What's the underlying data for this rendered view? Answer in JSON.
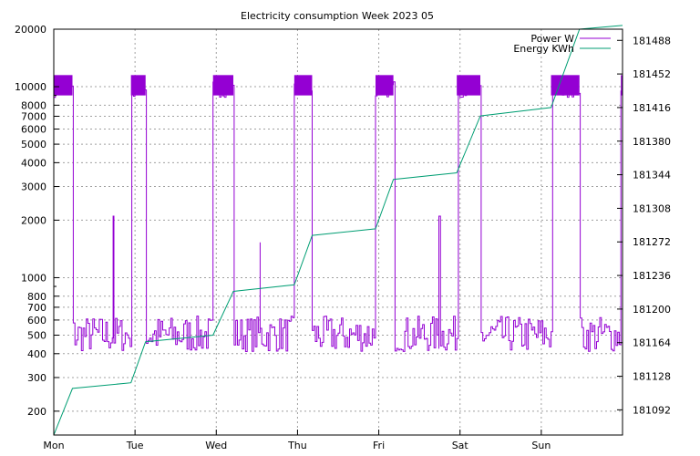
{
  "chart_data": {
    "type": "line",
    "title": "Electricity consumption Week 2023 05",
    "x_categories": [
      "Mon",
      "Tue",
      "Wed",
      "Thu",
      "Fri",
      "Sat",
      "Sun"
    ],
    "x_range_days": [
      0,
      7
    ],
    "y_left": {
      "scale": "log",
      "range": [
        150,
        20000
      ],
      "ticks": [
        200,
        300,
        400,
        500,
        600,
        700,
        800,
        1000,
        2000,
        3000,
        4000,
        5000,
        6000,
        7000,
        8000,
        10000,
        20000
      ]
    },
    "y_right": {
      "scale": "linear",
      "range": [
        181065,
        181500
      ],
      "ticks": [
        181092,
        181128,
        181164,
        181200,
        181236,
        181272,
        181308,
        181344,
        181380,
        181416,
        181452,
        181488
      ]
    },
    "grid": true,
    "legend_position": "top-right",
    "series": [
      {
        "name": "Power W",
        "axis": "left",
        "color": "#9400d3",
        "baseline_range": [
          410,
          630
        ],
        "high_block_level": 10000,
        "high_blocks": [
          [
            0.0,
            0.23
          ],
          [
            0.95,
            1.13
          ],
          [
            1.96,
            2.21
          ],
          [
            2.96,
            3.18
          ],
          [
            3.96,
            4.18
          ],
          [
            4.96,
            5.25
          ],
          [
            6.12,
            6.47
          ],
          [
            6.98,
            7.0
          ]
        ],
        "spikes": [
          [
            0.73,
            2100
          ],
          [
            2.54,
            1530
          ],
          [
            4.74,
            2100
          ],
          [
            6.98,
            9500
          ]
        ]
      },
      {
        "name": "Energy KWh",
        "axis": "right",
        "color": "#009e73",
        "points": [
          [
            0.0,
            181065
          ],
          [
            0.23,
            181115
          ],
          [
            0.95,
            181121
          ],
          [
            1.13,
            181165
          ],
          [
            1.96,
            181172
          ],
          [
            2.21,
            181219
          ],
          [
            2.96,
            181226
          ],
          [
            3.18,
            181279
          ],
          [
            3.96,
            181286
          ],
          [
            4.18,
            181339
          ],
          [
            4.96,
            181346
          ],
          [
            5.25,
            181407
          ],
          [
            6.12,
            181416
          ],
          [
            6.47,
            181500
          ],
          [
            7.0,
            181504
          ]
        ]
      }
    ]
  }
}
